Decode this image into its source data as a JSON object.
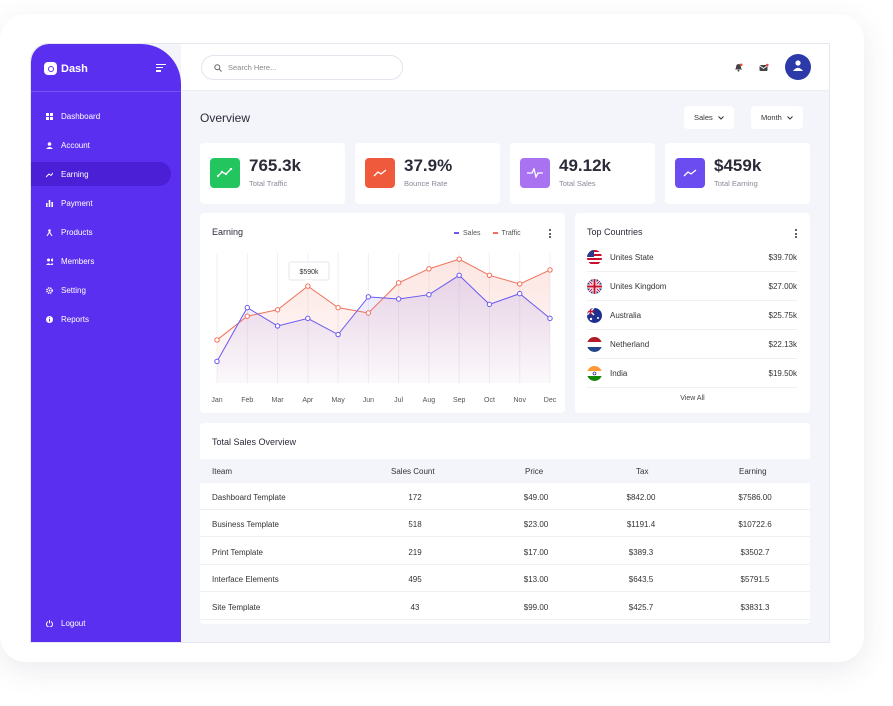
{
  "app": {
    "name": "Dash"
  },
  "sidebar": {
    "items": [
      {
        "label": "Dashboard",
        "icon": "grid-icon",
        "active": false
      },
      {
        "label": "Account",
        "icon": "user-icon",
        "active": false
      },
      {
        "label": "Earning",
        "icon": "trend-icon",
        "active": true
      },
      {
        "label": "Payment",
        "icon": "bar-chart-icon",
        "active": false
      },
      {
        "label": "Products",
        "icon": "product-icon",
        "active": false
      },
      {
        "label": "Members",
        "icon": "members-icon",
        "active": false
      },
      {
        "label": "Setting",
        "icon": "gear-icon",
        "active": false
      },
      {
        "label": "Reports",
        "icon": "info-icon",
        "active": false
      }
    ],
    "logout_label": "Logout"
  },
  "search": {
    "placeholder": "Search Here..."
  },
  "overview": {
    "title": "Overview",
    "filters": [
      "Sales",
      "Month"
    ]
  },
  "stats": [
    {
      "value": "765.3k",
      "label": "Total Traffic",
      "color": "#22c55e"
    },
    {
      "value": "37.9%",
      "label": "Bounce Rate",
      "color": "#f05a3c"
    },
    {
      "value": "49.12k",
      "label": "Total Sales",
      "color": "#a872f0"
    },
    {
      "value": "$459k",
      "label": "Total Earning",
      "color": "#6a4cf0"
    }
  ],
  "earning": {
    "title": "Earning",
    "tooltip": "$590k",
    "colors": {
      "sales": "#6a5af0",
      "traffic": "#f0705a"
    }
  },
  "chart_data": {
    "type": "line",
    "categories": [
      "Jan",
      "Feb",
      "Mar",
      "Apr",
      "May",
      "Jun",
      "Jul",
      "Aug",
      "Sep",
      "Oct",
      "Nov",
      "Dec"
    ],
    "series": [
      {
        "name": "Sales",
        "values": [
          20,
          70,
          53,
          60,
          45,
          80,
          78,
          82,
          100,
          73,
          83,
          60
        ]
      },
      {
        "name": "Traffic",
        "values": [
          40,
          62,
          68,
          90,
          70,
          65,
          93,
          106,
          115,
          100,
          92,
          105
        ]
      }
    ]
  },
  "countries": {
    "title": "Top Countries",
    "rows": [
      {
        "name": "Unites State",
        "value": "$39.70k",
        "flag": "us"
      },
      {
        "name": "Unites Kingdom",
        "value": "$27.00k",
        "flag": "uk"
      },
      {
        "name": "Australia",
        "value": "$25.75k",
        "flag": "au"
      },
      {
        "name": "Netherland",
        "value": "$22.13k",
        "flag": "nl"
      },
      {
        "name": "India",
        "value": "$19.50k",
        "flag": "in"
      }
    ],
    "view_all": "View All"
  },
  "sales_table": {
    "title": "Total Sales Overview",
    "columns": [
      "Iteam",
      "Sales Count",
      "Price",
      "Tax",
      "Earning"
    ],
    "rows": [
      [
        "Dashboard Template",
        "172",
        "$49.00",
        "$842.00",
        "$7586.00"
      ],
      [
        "Business Template",
        "518",
        "$23.00",
        "$1191.4",
        "$10722.6"
      ],
      [
        "Print Template",
        "219",
        "$17.00",
        "$389.3",
        "$3502.7"
      ],
      [
        "Interface Elements",
        "495",
        "$13.00",
        "$643.5",
        "$5791.5"
      ],
      [
        "Site Template",
        "43",
        "$99.00",
        "$425.7",
        "$3831.3"
      ]
    ]
  }
}
